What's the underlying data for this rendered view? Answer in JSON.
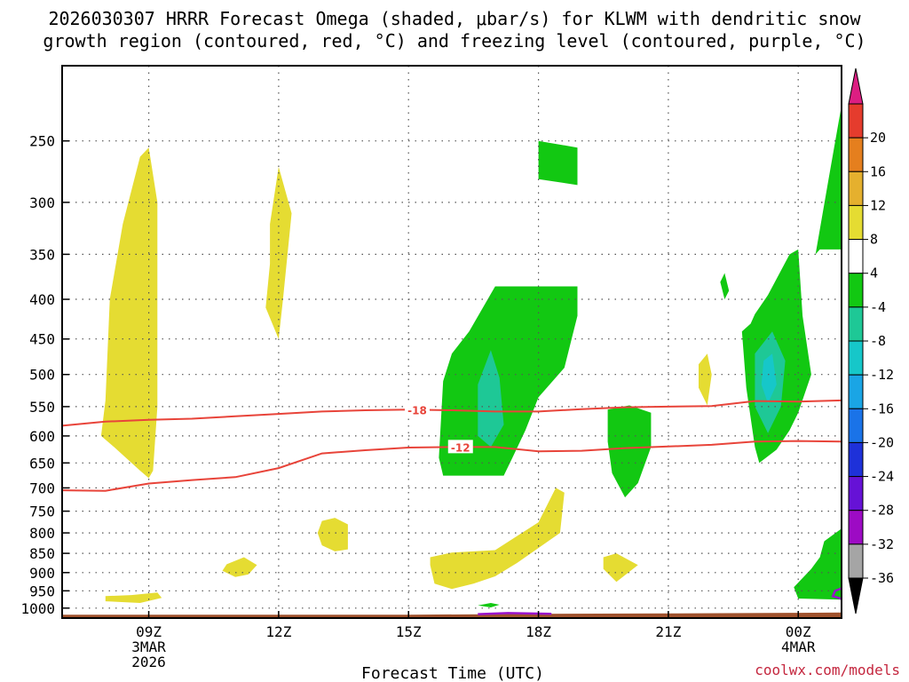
{
  "chart_data": {
    "type": "contour",
    "title_line1": "2026030307 HRRR Forecast Omega (shaded, μbar/s) for KLWM with dendritic snow",
    "title_line2": "growth region (contoured, red, °C) and freezing level (contoured, purple, °C)",
    "xlabel": "Forecast Time (UTC)",
    "ylabel": "",
    "credit": "coolwx.com/models",
    "xlim_hours": [
      7,
      25
    ],
    "ylim_hpa": [
      1030,
      200
    ],
    "x_ticks": [
      {
        "hour": 9,
        "lines": [
          "09Z",
          "3MAR",
          "2026"
        ]
      },
      {
        "hour": 12,
        "lines": [
          "12Z"
        ]
      },
      {
        "hour": 15,
        "lines": [
          "15Z"
        ]
      },
      {
        "hour": 18,
        "lines": [
          "18Z"
        ]
      },
      {
        "hour": 21,
        "lines": [
          "21Z"
        ]
      },
      {
        "hour": 24,
        "lines": [
          "00Z",
          "4MAR"
        ]
      }
    ],
    "y_ticks": [
      250,
      300,
      350,
      400,
      450,
      500,
      550,
      600,
      650,
      700,
      750,
      800,
      850,
      900,
      950,
      1000
    ],
    "colorbar": {
      "levels": [
        -36,
        -32,
        -28,
        -24,
        -20,
        -16,
        -12,
        -8,
        -4,
        4,
        8,
        12,
        16,
        20
      ],
      "colors": [
        "#a5a5a5",
        "#9d0bc4",
        "#6612d6",
        "#1e31d9",
        "#1a73e8",
        "#1aa5e5",
        "#16c7c9",
        "#1ec896",
        "#12c812",
        "#ffffff",
        "#e5dc32",
        "#e5b02e",
        "#e57f1e",
        "#e53c2d"
      ],
      "under_color": "#000000",
      "over_color": "#dc1e82"
    },
    "contour_lines": [
      {
        "label": "-18",
        "color": "#e8443a",
        "points": [
          [
            7.0,
            582
          ],
          [
            8.0,
            575
          ],
          [
            9.0,
            572
          ],
          [
            10.0,
            570
          ],
          [
            11.0,
            566
          ],
          [
            12.0,
            562
          ],
          [
            13.0,
            558
          ],
          [
            14.0,
            556
          ],
          [
            15.0,
            555
          ],
          [
            16.0,
            556
          ],
          [
            17.0,
            558
          ],
          [
            18.0,
            558
          ],
          [
            19.0,
            554
          ],
          [
            20.0,
            551
          ],
          [
            21.0,
            550
          ],
          [
            22.0,
            549
          ],
          [
            23.0,
            541
          ],
          [
            24.0,
            542
          ],
          [
            25.0,
            540
          ]
        ],
        "label_hour": 15.2
      },
      {
        "label": "-12",
        "color": "#e8443a",
        "points": [
          [
            7.0,
            705
          ],
          [
            8.0,
            706
          ],
          [
            9.0,
            691
          ],
          [
            10.0,
            684
          ],
          [
            11.0,
            678
          ],
          [
            12.0,
            660
          ],
          [
            13.0,
            632
          ],
          [
            14.0,
            626
          ],
          [
            15.0,
            621
          ],
          [
            16.0,
            620
          ],
          [
            17.0,
            620
          ],
          [
            18.0,
            628
          ],
          [
            19.0,
            627
          ],
          [
            20.0,
            622
          ],
          [
            21.0,
            619
          ],
          [
            22.0,
            616
          ],
          [
            23.0,
            610
          ],
          [
            24.0,
            609
          ],
          [
            25.0,
            610
          ]
        ],
        "label_hour": 16.2
      }
    ],
    "freezing_level_segments": [
      {
        "color": "#9912cc",
        "points": [
          [
            16.6,
            1018
          ],
          [
            17.3,
            1015
          ],
          [
            18.3,
            1017
          ]
        ]
      },
      {
        "color": "#9912cc",
        "points": [
          [
            25.0,
            943
          ],
          [
            24.85,
            950
          ],
          [
            24.8,
            965
          ],
          [
            25.0,
            973
          ]
        ]
      }
    ],
    "terrain": {
      "color": "#a0522d",
      "points": [
        [
          7.0,
          1020
        ],
        [
          12.0,
          1020
        ],
        [
          15.0,
          1020
        ],
        [
          18.0,
          1017
        ],
        [
          21.0,
          1016
        ],
        [
          24.0,
          1014
        ],
        [
          25.0,
          1013
        ]
      ]
    },
    "omega_regions": [
      {
        "value": 6,
        "color": "#e5dc32",
        "points": [
          [
            8.0,
            540
          ],
          [
            8.1,
            400
          ],
          [
            8.4,
            320
          ],
          [
            8.8,
            262
          ],
          [
            9.0,
            255
          ],
          [
            9.2,
            300
          ],
          [
            9.2,
            550
          ],
          [
            9.1,
            665
          ],
          [
            9.0,
            680
          ],
          [
            8.8,
            665
          ],
          [
            8.2,
            620
          ],
          [
            7.9,
            600
          ]
        ]
      },
      {
        "value": 6,
        "color": "#e5dc32",
        "points": [
          [
            11.8,
            320
          ],
          [
            12.0,
            270
          ],
          [
            12.3,
            310
          ],
          [
            12.1,
            400
          ],
          [
            12.0,
            450
          ],
          [
            11.7,
            410
          ],
          [
            11.8,
            360
          ]
        ]
      },
      {
        "value": 6,
        "color": "#e5dc32",
        "points": [
          [
            13.0,
            772
          ],
          [
            13.3,
            765
          ],
          [
            13.6,
            780
          ],
          [
            13.6,
            840
          ],
          [
            13.3,
            845
          ],
          [
            13.0,
            830
          ],
          [
            12.9,
            800
          ]
        ]
      },
      {
        "value": 6,
        "color": "#e5dc32",
        "points": [
          [
            10.8,
            878
          ],
          [
            11.2,
            860
          ],
          [
            11.5,
            880
          ],
          [
            11.3,
            905
          ],
          [
            11.0,
            912
          ],
          [
            10.7,
            895
          ]
        ]
      },
      {
        "value": 6,
        "color": "#e5dc32",
        "points": [
          [
            8.0,
            965
          ],
          [
            8.6,
            962
          ],
          [
            9.2,
            955
          ],
          [
            9.3,
            970
          ],
          [
            8.8,
            985
          ],
          [
            8.0,
            980
          ]
        ]
      },
      {
        "value": 6,
        "color": "#e5dc32",
        "points": [
          [
            15.5,
            860
          ],
          [
            16.0,
            848
          ],
          [
            17.0,
            842
          ],
          [
            18.0,
            775
          ],
          [
            18.4,
            700
          ],
          [
            18.6,
            710
          ],
          [
            18.5,
            800
          ],
          [
            17.5,
            875
          ],
          [
            17.0,
            910
          ],
          [
            16.5,
            930
          ],
          [
            16.0,
            945
          ],
          [
            15.6,
            930
          ],
          [
            15.5,
            880
          ]
        ]
      },
      {
        "value": 6,
        "color": "#e5dc32",
        "points": [
          [
            19.5,
            860
          ],
          [
            19.8,
            850
          ],
          [
            20.3,
            880
          ],
          [
            19.8,
            925
          ],
          [
            19.5,
            890
          ]
        ]
      },
      {
        "value": 6,
        "color": "#e5dc32",
        "points": [
          [
            21.7,
            485
          ],
          [
            21.9,
            470
          ],
          [
            22.0,
            500
          ],
          [
            21.9,
            548
          ],
          [
            21.7,
            520
          ]
        ]
      },
      {
        "value": -6,
        "color": "#12c812",
        "points": [
          [
            16.4,
            440
          ],
          [
            17.0,
            385
          ],
          [
            17.5,
            385
          ],
          [
            18.9,
            385
          ],
          [
            18.9,
            420
          ],
          [
            18.6,
            490
          ],
          [
            18.0,
            535
          ],
          [
            17.7,
            590
          ],
          [
            17.4,
            640
          ],
          [
            17.2,
            675
          ],
          [
            16.7,
            675
          ],
          [
            15.8,
            675
          ],
          [
            15.7,
            640
          ],
          [
            15.8,
            510
          ],
          [
            16.0,
            470
          ]
        ]
      },
      {
        "value": -10,
        "color": "#1ec896",
        "points": [
          [
            16.6,
            515
          ],
          [
            16.9,
            465
          ],
          [
            17.1,
            505
          ],
          [
            17.2,
            580
          ],
          [
            16.9,
            620
          ],
          [
            16.6,
            600
          ]
        ]
      },
      {
        "value": -6,
        "color": "#12c812",
        "points": [
          [
            18.0,
            250
          ],
          [
            18.9,
            255
          ],
          [
            18.9,
            285
          ],
          [
            18.0,
            280
          ]
        ]
      },
      {
        "value": -6,
        "color": "#12c812",
        "points": [
          [
            19.6,
            555
          ],
          [
            20.1,
            548
          ],
          [
            20.6,
            560
          ],
          [
            20.6,
            620
          ],
          [
            20.3,
            690
          ],
          [
            20.0,
            720
          ],
          [
            19.7,
            670
          ],
          [
            19.6,
            610
          ]
        ]
      },
      {
        "value": -6,
        "color": "#12c812",
        "points": [
          [
            22.9,
            430
          ],
          [
            23.0,
            418
          ],
          [
            23.3,
            395
          ],
          [
            23.8,
            350
          ],
          [
            24.0,
            345
          ],
          [
            24.1,
            420
          ],
          [
            24.3,
            500
          ],
          [
            24.0,
            560
          ],
          [
            23.8,
            590
          ],
          [
            23.5,
            625
          ],
          [
            23.1,
            650
          ],
          [
            23.0,
            620
          ],
          [
            22.8,
            520
          ],
          [
            22.7,
            440
          ]
        ]
      },
      {
        "value": -10,
        "color": "#1ec896",
        "points": [
          [
            23.0,
            470
          ],
          [
            23.4,
            440
          ],
          [
            23.7,
            480
          ],
          [
            23.6,
            550
          ],
          [
            23.3,
            595
          ],
          [
            23.0,
            550
          ]
        ]
      },
      {
        "value": -14,
        "color": "#16c7c9",
        "points": [
          [
            23.2,
            480
          ],
          [
            23.4,
            470
          ],
          [
            23.5,
            515
          ],
          [
            23.3,
            545
          ],
          [
            23.15,
            515
          ]
        ]
      },
      {
        "value": -6,
        "color": "#12c812",
        "points": [
          [
            22.2,
            380
          ],
          [
            22.3,
            370
          ],
          [
            22.4,
            390
          ],
          [
            22.3,
            400
          ]
        ]
      },
      {
        "value": -6,
        "color": "#12c812",
        "points": [
          [
            24.4,
            350
          ],
          [
            24.7,
            280
          ],
          [
            25.0,
            225
          ],
          [
            25.0,
            345
          ],
          [
            24.5,
            345
          ]
        ]
      },
      {
        "value": -6,
        "color": "#12c812",
        "points": [
          [
            24.6,
            820
          ],
          [
            25.0,
            790
          ],
          [
            25.0,
            975
          ],
          [
            24.0,
            972
          ],
          [
            23.9,
            940
          ],
          [
            24.3,
            890
          ],
          [
            24.5,
            860
          ]
        ]
      },
      {
        "value": -6,
        "color": "#12c812",
        "points": [
          [
            16.6,
            992
          ],
          [
            16.9,
            985
          ],
          [
            17.1,
            990
          ],
          [
            16.9,
            998
          ]
        ]
      }
    ]
  }
}
